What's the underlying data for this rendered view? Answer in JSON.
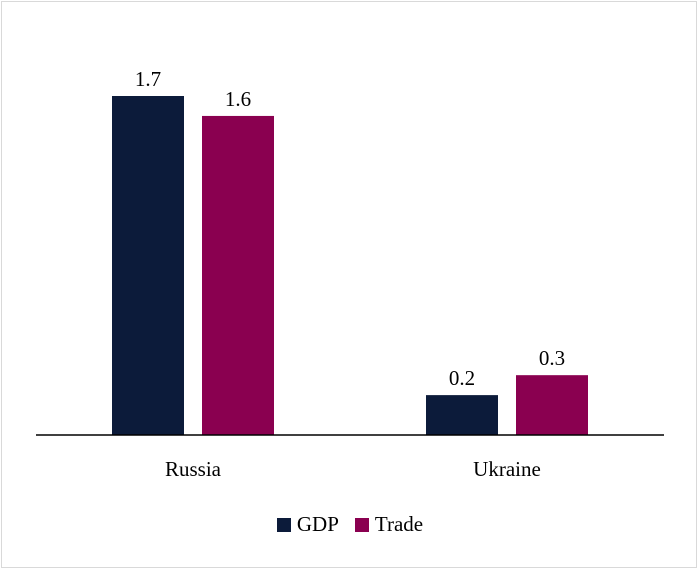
{
  "chart_data": {
    "type": "bar",
    "categories": [
      "Russia",
      "Ukraine"
    ],
    "series": [
      {
        "name": "GDP",
        "values": [
          1.7,
          0.2
        ],
        "color": "#0c1b3a"
      },
      {
        "name": "Trade",
        "values": [
          1.6,
          0.3
        ],
        "color": "#8a0050"
      }
    ],
    "data_labels": true,
    "ylim": [
      0,
      1.7
    ],
    "grid": false,
    "legend_position": "bottom"
  }
}
